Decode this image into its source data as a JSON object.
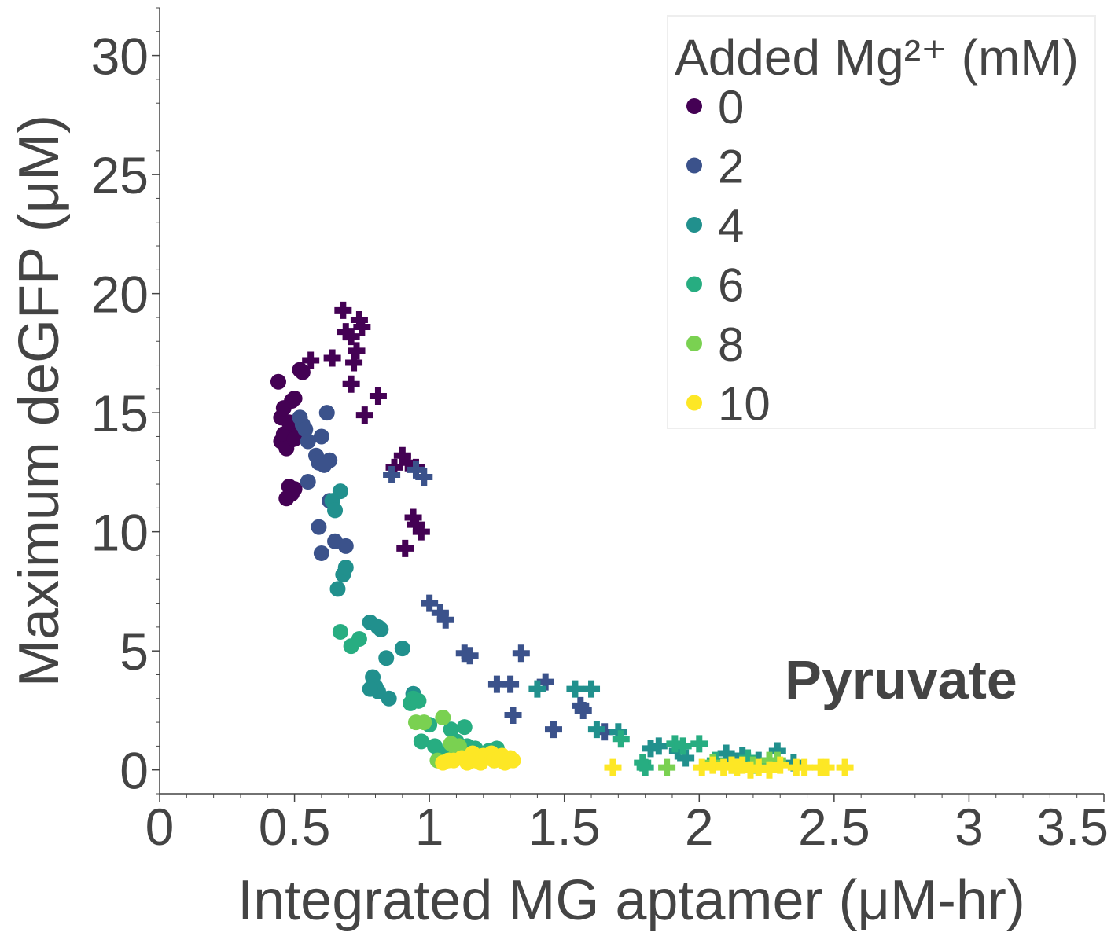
{
  "chart_data": {
    "type": "scatter",
    "title": "",
    "annotation": "Pyruvate",
    "xlabel": "Integrated MG aptamer (μM-hr)",
    "ylabel": "Maximum deGFP (μM)",
    "xlim": [
      0,
      3.5
    ],
    "ylim": [
      -1,
      32
    ],
    "x_ticks": [
      "0",
      "0.5",
      "1",
      "1.5",
      "2",
      "2.5",
      "3",
      "3.5"
    ],
    "y_ticks": [
      "0",
      "5",
      "10",
      "15",
      "20",
      "25",
      "30"
    ],
    "grid": false,
    "legend": {
      "title": "Added Mg²⁺ (mM)",
      "placement": "top-right",
      "entries": [
        "0",
        "2",
        "4",
        "6",
        "8",
        "10"
      ]
    },
    "marker_shapes": [
      "circle",
      "plus"
    ],
    "series": [
      {
        "name": "0",
        "color": "#440154",
        "circle": [
          [
            0.44,
            16.3
          ],
          [
            0.45,
            14.8
          ],
          [
            0.46,
            15.2
          ],
          [
            0.47,
            14.0
          ],
          [
            0.48,
            13.8
          ],
          [
            0.49,
            15.5
          ],
          [
            0.5,
            15.6
          ],
          [
            0.51,
            14.2
          ],
          [
            0.52,
            16.8
          ],
          [
            0.53,
            16.7
          ],
          [
            0.45,
            13.8
          ],
          [
            0.46,
            14.1
          ],
          [
            0.47,
            13.5
          ],
          [
            0.48,
            11.9
          ],
          [
            0.49,
            11.6
          ],
          [
            0.5,
            11.8
          ],
          [
            0.47,
            11.4
          ],
          [
            0.48,
            14.6
          ],
          [
            0.5,
            13.9
          ]
        ],
        "plus": [
          [
            0.56,
            17.2
          ],
          [
            0.64,
            17.3
          ],
          [
            0.68,
            19.3
          ],
          [
            0.69,
            18.4
          ],
          [
            0.71,
            18.2
          ],
          [
            0.72,
            17.1
          ],
          [
            0.73,
            17.6
          ],
          [
            0.74,
            18.9
          ],
          [
            0.75,
            18.6
          ],
          [
            0.71,
            16.2
          ],
          [
            0.76,
            14.9
          ],
          [
            0.81,
            15.7
          ],
          [
            0.87,
            12.7
          ],
          [
            0.9,
            13.2
          ],
          [
            0.91,
            9.3
          ],
          [
            0.92,
            12.9
          ],
          [
            0.94,
            10.6
          ],
          [
            0.95,
            10.3
          ],
          [
            0.97,
            10.0
          ],
          [
            0.95,
            12.7
          ]
        ]
      },
      {
        "name": "2",
        "color": "#3b528b",
        "circle": [
          [
            0.52,
            14.8
          ],
          [
            0.53,
            14.5
          ],
          [
            0.54,
            14.3
          ],
          [
            0.55,
            13.8
          ],
          [
            0.58,
            13.2
          ],
          [
            0.59,
            12.9
          ],
          [
            0.6,
            14.0
          ],
          [
            0.62,
            15.0
          ],
          [
            0.63,
            13.0
          ],
          [
            0.55,
            12.1
          ],
          [
            0.59,
            10.2
          ],
          [
            0.6,
            9.1
          ],
          [
            0.63,
            11.3
          ],
          [
            0.65,
            9.6
          ],
          [
            0.69,
            9.4
          ],
          [
            0.61,
            12.8
          ]
        ],
        "plus": [
          [
            0.86,
            12.4
          ],
          [
            0.95,
            12.6
          ],
          [
            0.98,
            12.3
          ],
          [
            1.0,
            7.0
          ],
          [
            1.04,
            6.6
          ],
          [
            1.06,
            6.3
          ],
          [
            1.13,
            4.9
          ],
          [
            1.15,
            4.8
          ],
          [
            1.25,
            3.6
          ],
          [
            1.3,
            3.6
          ],
          [
            1.34,
            4.9
          ],
          [
            1.31,
            2.3
          ],
          [
            1.43,
            3.7
          ],
          [
            1.46,
            1.7
          ],
          [
            1.56,
            2.7
          ],
          [
            1.57,
            2.5
          ],
          [
            1.65,
            1.6
          ]
        ]
      },
      {
        "name": "4",
        "color": "#21908d",
        "circle": [
          [
            0.64,
            11.3
          ],
          [
            0.65,
            10.9
          ],
          [
            0.67,
            11.7
          ],
          [
            0.66,
            7.6
          ],
          [
            0.68,
            8.2
          ],
          [
            0.69,
            8.5
          ],
          [
            0.78,
            6.2
          ],
          [
            0.81,
            6.0
          ],
          [
            0.82,
            5.9
          ],
          [
            0.84,
            4.7
          ],
          [
            0.9,
            5.1
          ],
          [
            0.79,
            3.9
          ],
          [
            0.8,
            3.5
          ],
          [
            0.81,
            3.3
          ],
          [
            0.85,
            3.0
          ],
          [
            0.78,
            3.4
          ],
          [
            0.94,
            3.2
          ]
        ],
        "plus": [
          [
            1.4,
            3.4
          ],
          [
            1.54,
            3.4
          ],
          [
            1.6,
            3.4
          ],
          [
            1.62,
            1.7
          ],
          [
            1.7,
            1.6
          ],
          [
            1.82,
            0.9
          ],
          [
            1.85,
            1.0
          ],
          [
            1.92,
            0.8
          ],
          [
            1.95,
            0.5
          ],
          [
            2.1,
            0.7
          ],
          [
            2.16,
            0.6
          ],
          [
            2.22,
            0.4
          ],
          [
            2.29,
            0.8
          ],
          [
            2.35,
            0.3
          ]
        ]
      },
      {
        "name": "6",
        "color": "#27ad81",
        "circle": [
          [
            0.67,
            5.8
          ],
          [
            0.71,
            5.2
          ],
          [
            0.74,
            5.5
          ],
          [
            0.93,
            2.8
          ],
          [
            0.94,
            3.0
          ],
          [
            0.96,
            2.9
          ],
          [
            0.97,
            1.2
          ],
          [
            1.0,
            1.9
          ],
          [
            1.02,
            1.0
          ],
          [
            1.08,
            1.7
          ],
          [
            1.1,
            1.2
          ],
          [
            1.13,
            1.8
          ],
          [
            1.14,
            1.0
          ],
          [
            1.17,
            0.9
          ],
          [
            1.22,
            0.8
          ],
          [
            1.25,
            0.9
          ],
          [
            1.06,
            0.7
          ]
        ],
        "plus": [
          [
            1.71,
            1.3
          ],
          [
            1.79,
            0.3
          ],
          [
            1.8,
            0.1
          ],
          [
            1.91,
            1.1
          ],
          [
            1.94,
            1.0
          ],
          [
            2.0,
            1.1
          ],
          [
            2.06,
            0.4
          ],
          [
            2.18,
            0.5
          ],
          [
            2.26,
            0.2
          ]
        ]
      },
      {
        "name": "8",
        "color": "#7ad151",
        "circle": [
          [
            0.95,
            2.0
          ],
          [
            0.98,
            2.0
          ],
          [
            1.05,
            2.2
          ],
          [
            1.08,
            1.1
          ],
          [
            1.11,
            1.0
          ],
          [
            1.03,
            0.4
          ],
          [
            1.1,
            0.7
          ],
          [
            1.18,
            0.6
          ],
          [
            1.2,
            0.5
          ],
          [
            1.24,
            0.4
          ]
        ],
        "plus": [
          [
            1.88,
            0.1
          ],
          [
            2.05,
            0.3
          ],
          [
            2.12,
            0.2
          ],
          [
            2.2,
            0.2
          ],
          [
            2.26,
            0.4
          ],
          [
            2.29,
            0.4
          ]
        ]
      },
      {
        "name": "10",
        "color": "#fde725",
        "circle": [
          [
            1.05,
            0.3
          ],
          [
            1.07,
            0.4
          ],
          [
            1.09,
            0.4
          ],
          [
            1.12,
            0.5
          ],
          [
            1.14,
            0.3
          ],
          [
            1.16,
            0.7
          ],
          [
            1.17,
            0.4
          ],
          [
            1.19,
            0.3
          ],
          [
            1.2,
            0.6
          ],
          [
            1.21,
            0.5
          ],
          [
            1.23,
            0.7
          ],
          [
            1.24,
            0.4
          ],
          [
            1.26,
            0.5
          ],
          [
            1.27,
            0.6
          ],
          [
            1.28,
            0.3
          ],
          [
            1.29,
            0.4
          ],
          [
            1.3,
            0.5
          ],
          [
            1.31,
            0.4
          ]
        ],
        "plus": [
          [
            1.68,
            0.1
          ],
          [
            2.01,
            0.1
          ],
          [
            2.05,
            0.2
          ],
          [
            2.09,
            0.1
          ],
          [
            2.12,
            0.2
          ],
          [
            2.14,
            0.1
          ],
          [
            2.16,
            0.2
          ],
          [
            2.19,
            0.0
          ],
          [
            2.22,
            0.1
          ],
          [
            2.26,
            0.0
          ],
          [
            2.3,
            0.2
          ],
          [
            2.36,
            0.1
          ],
          [
            2.39,
            0.1
          ],
          [
            2.45,
            0.1
          ],
          [
            2.47,
            0.1
          ],
          [
            2.54,
            0.1
          ]
        ]
      }
    ]
  }
}
